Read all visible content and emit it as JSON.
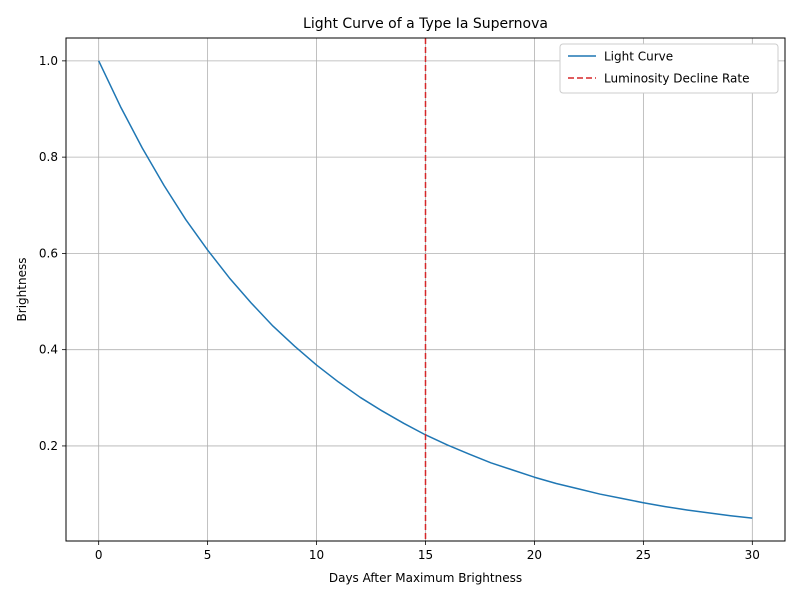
{
  "chart_data": {
    "type": "line",
    "title": "Light Curve of a Type Ia Supernova",
    "xlabel": "Days After Maximum Brightness",
    "ylabel": "Brightness",
    "xlim": [
      -1.5,
      31.5
    ],
    "ylim": [
      0.0025,
      1.0475
    ],
    "xticks": [
      0,
      5,
      10,
      15,
      20,
      25,
      30
    ],
    "xtick_labels": [
      "0",
      "5",
      "10",
      "15",
      "20",
      "25",
      "30"
    ],
    "yticks": [
      0.2,
      0.4,
      0.6,
      0.8,
      1.0
    ],
    "ytick_labels": [
      "0.2",
      "0.4",
      "0.6",
      "0.8",
      "1.0"
    ],
    "grid": true,
    "legend_position": "top-right",
    "series": [
      {
        "name": "Light Curve",
        "color": "#1f77b4",
        "style": "solid",
        "x": [
          0,
          1,
          2,
          3,
          4,
          5,
          6,
          7,
          8,
          9,
          10,
          11,
          12,
          13,
          14,
          15,
          16,
          17,
          18,
          19,
          20,
          21,
          22,
          23,
          24,
          25,
          26,
          27,
          28,
          29,
          30
        ],
        "y": [
          1.0,
          0.905,
          0.819,
          0.741,
          0.67,
          0.607,
          0.549,
          0.497,
          0.449,
          0.407,
          0.368,
          0.333,
          0.301,
          0.273,
          0.247,
          0.223,
          0.202,
          0.183,
          0.165,
          0.15,
          0.135,
          0.122,
          0.111,
          0.1,
          0.091,
          0.082,
          0.074,
          0.067,
          0.061,
          0.055,
          0.05
        ]
      }
    ],
    "vlines": [
      {
        "name": "Luminosity Decline Rate",
        "x": 15,
        "color": "#d62728",
        "style": "dashed"
      }
    ]
  }
}
